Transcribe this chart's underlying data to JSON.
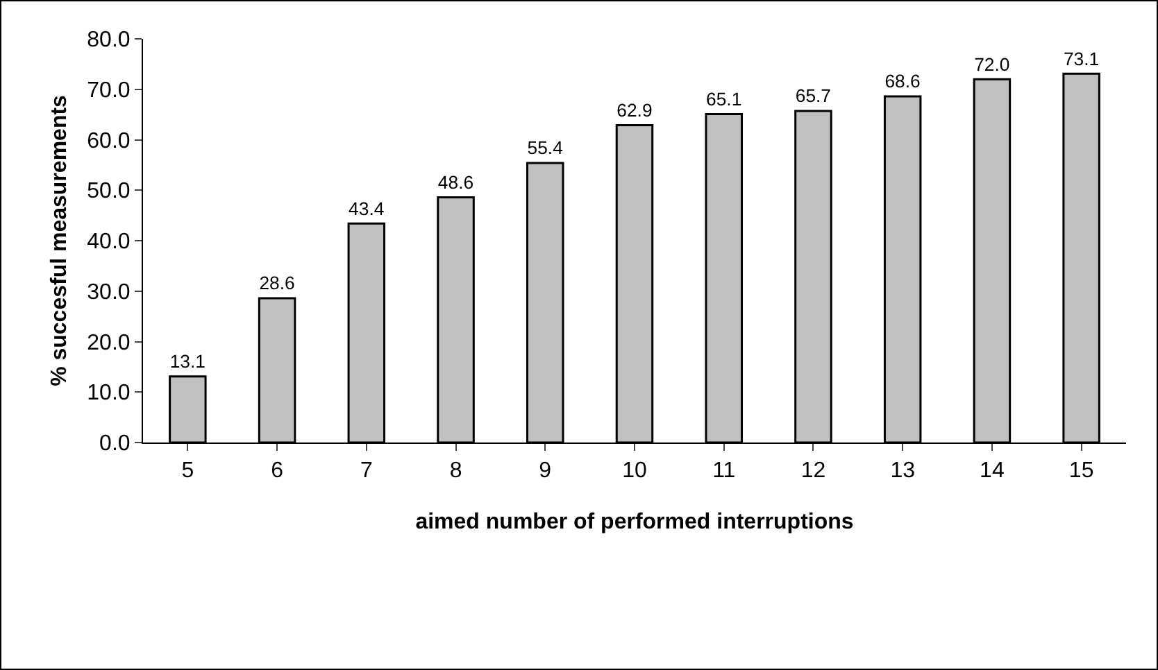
{
  "chart_data": {
    "type": "bar",
    "xlabel": "aimed number of performed interruptions",
    "ylabel": "% succesful measurements",
    "categories": [
      "5",
      "6",
      "7",
      "8",
      "9",
      "10",
      "11",
      "12",
      "13",
      "14",
      "15"
    ],
    "values": [
      13.1,
      28.6,
      43.4,
      48.6,
      55.4,
      62.9,
      65.1,
      65.7,
      68.6,
      72.0,
      73.1
    ],
    "value_labels": [
      "13.1",
      "28.6",
      "43.4",
      "48.6",
      "55.4",
      "62.9",
      "65.1",
      "65.7",
      "68.6",
      "72.0",
      "73.1"
    ],
    "color": "#c0c0c0",
    "ylim": [
      0,
      80
    ],
    "yticks": [
      {
        "value": 0,
        "label": "0.0"
      },
      {
        "value": 10,
        "label": "10.0"
      },
      {
        "value": 20,
        "label": "20.0"
      },
      {
        "value": 30,
        "label": "30.0"
      },
      {
        "value": 40,
        "label": "40.0"
      },
      {
        "value": 50,
        "label": "50.0"
      },
      {
        "value": 60,
        "label": "60.0"
      },
      {
        "value": 70,
        "label": "70.0"
      },
      {
        "value": 80,
        "label": "80.0"
      }
    ],
    "grid": false
  }
}
